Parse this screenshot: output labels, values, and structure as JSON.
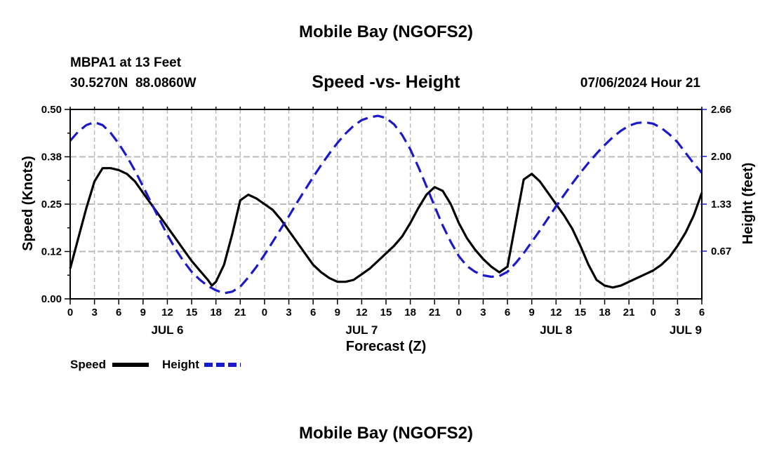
{
  "page": {
    "title": "Mobile Bay (NGOFS2)",
    "station_line": "MBPA1 at 13 Feet",
    "coords_line": "30.5270N  88.0860W",
    "datetime": "07/06/2024 Hour 21",
    "footer_title": "Mobile Bay (NGOFS2)"
  },
  "colors": {
    "speed": "#000000",
    "height": "#1a1acc",
    "grid": "#bbbbbb"
  },
  "chart_data": {
    "type": "line",
    "title": "Speed -vs- Height",
    "xlabel": "Forecast (Z)",
    "ylabel_left": "Speed (Knots)",
    "ylabel_right": "Height (feet)",
    "x_unit": "hours since JUL 6 00Z",
    "xlim": [
      0,
      78
    ],
    "ylim_left": [
      0,
      0.5
    ],
    "ylim_right": [
      0,
      2.66
    ],
    "left_ticks": [
      {
        "value": 0.0,
        "label": "0.00"
      },
      {
        "value": 0.125,
        "label": "0.12"
      },
      {
        "value": 0.25,
        "label": "0.25"
      },
      {
        "value": 0.375,
        "label": "0.38"
      },
      {
        "value": 0.5,
        "label": "0.50"
      }
    ],
    "right_ticks": [
      {
        "value": 0.67,
        "label": "0.67"
      },
      {
        "value": 1.33,
        "label": "1.33"
      },
      {
        "value": 2.0,
        "label": "2.00"
      },
      {
        "value": 2.66,
        "label": "2.66"
      }
    ],
    "x_ticks": [
      {
        "value": 0,
        "label": "0"
      },
      {
        "value": 3,
        "label": "3"
      },
      {
        "value": 6,
        "label": "6"
      },
      {
        "value": 9,
        "label": "9"
      },
      {
        "value": 12,
        "label": "12"
      },
      {
        "value": 15,
        "label": "15"
      },
      {
        "value": 18,
        "label": "18"
      },
      {
        "value": 21,
        "label": "21"
      },
      {
        "value": 24,
        "label": "0"
      },
      {
        "value": 27,
        "label": "3"
      },
      {
        "value": 30,
        "label": "6"
      },
      {
        "value": 33,
        "label": "9"
      },
      {
        "value": 36,
        "label": "12"
      },
      {
        "value": 39,
        "label": "15"
      },
      {
        "value": 42,
        "label": "18"
      },
      {
        "value": 45,
        "label": "21"
      },
      {
        "value": 48,
        "label": "0"
      },
      {
        "value": 51,
        "label": "3"
      },
      {
        "value": 54,
        "label": "6"
      },
      {
        "value": 57,
        "label": "9"
      },
      {
        "value": 60,
        "label": "12"
      },
      {
        "value": 63,
        "label": "15"
      },
      {
        "value": 66,
        "label": "18"
      },
      {
        "value": 69,
        "label": "21"
      },
      {
        "value": 72,
        "label": "0"
      },
      {
        "value": 75,
        "label": "3"
      },
      {
        "value": 78,
        "label": "6"
      }
    ],
    "day_labels": [
      {
        "value": 12,
        "label": "JUL 6"
      },
      {
        "value": 36,
        "label": "JUL 7"
      },
      {
        "value": 60,
        "label": "JUL 8"
      },
      {
        "value": 76,
        "label": "JUL 9"
      }
    ],
    "series": [
      {
        "name": "Speed",
        "axis": "left",
        "style": "solid",
        "points": [
          [
            0,
            0.08
          ],
          [
            1,
            0.16
          ],
          [
            2,
            0.24
          ],
          [
            3,
            0.31
          ],
          [
            4,
            0.345
          ],
          [
            5,
            0.345
          ],
          [
            6,
            0.34
          ],
          [
            7,
            0.33
          ],
          [
            8,
            0.31
          ],
          [
            9,
            0.28
          ],
          [
            10,
            0.25
          ],
          [
            11,
            0.22
          ],
          [
            12,
            0.19
          ],
          [
            13,
            0.16
          ],
          [
            14,
            0.13
          ],
          [
            15,
            0.1
          ],
          [
            16,
            0.075
          ],
          [
            17,
            0.05
          ],
          [
            17.5,
            0.035
          ],
          [
            18,
            0.045
          ],
          [
            19,
            0.09
          ],
          [
            20,
            0.17
          ],
          [
            21,
            0.26
          ],
          [
            22,
            0.275
          ],
          [
            23,
            0.265
          ],
          [
            24,
            0.25
          ],
          [
            25,
            0.235
          ],
          [
            26,
            0.21
          ],
          [
            27,
            0.18
          ],
          [
            28,
            0.15
          ],
          [
            29,
            0.12
          ],
          [
            30,
            0.09
          ],
          [
            31,
            0.07
          ],
          [
            32,
            0.055
          ],
          [
            33,
            0.045
          ],
          [
            34,
            0.045
          ],
          [
            35,
            0.05
          ],
          [
            36,
            0.065
          ],
          [
            37,
            0.08
          ],
          [
            38,
            0.1
          ],
          [
            39,
            0.12
          ],
          [
            40,
            0.14
          ],
          [
            41,
            0.165
          ],
          [
            42,
            0.2
          ],
          [
            43,
            0.24
          ],
          [
            44,
            0.275
          ],
          [
            45,
            0.295
          ],
          [
            46,
            0.285
          ],
          [
            47,
            0.25
          ],
          [
            48,
            0.2
          ],
          [
            49,
            0.16
          ],
          [
            50,
            0.13
          ],
          [
            51,
            0.105
          ],
          [
            52,
            0.085
          ],
          [
            53,
            0.07
          ],
          [
            54,
            0.085
          ],
          [
            55,
            0.2
          ],
          [
            56,
            0.315
          ],
          [
            57,
            0.33
          ],
          [
            58,
            0.31
          ],
          [
            59,
            0.28
          ],
          [
            60,
            0.25
          ],
          [
            61,
            0.22
          ],
          [
            62,
            0.185
          ],
          [
            63,
            0.14
          ],
          [
            64,
            0.09
          ],
          [
            65,
            0.05
          ],
          [
            66,
            0.035
          ],
          [
            67,
            0.03
          ],
          [
            68,
            0.035
          ],
          [
            69,
            0.045
          ],
          [
            70,
            0.055
          ],
          [
            71,
            0.065
          ],
          [
            72,
            0.075
          ],
          [
            73,
            0.09
          ],
          [
            74,
            0.11
          ],
          [
            75,
            0.14
          ],
          [
            76,
            0.175
          ],
          [
            77,
            0.22
          ],
          [
            78,
            0.28
          ]
        ]
      },
      {
        "name": "Height",
        "axis": "right",
        "style": "dashed",
        "points": [
          [
            0,
            2.22
          ],
          [
            1,
            2.35
          ],
          [
            2,
            2.44
          ],
          [
            3,
            2.48
          ],
          [
            4,
            2.44
          ],
          [
            5,
            2.33
          ],
          [
            6,
            2.18
          ],
          [
            7,
            2.0
          ],
          [
            8,
            1.8
          ],
          [
            9,
            1.58
          ],
          [
            10,
            1.35
          ],
          [
            11,
            1.12
          ],
          [
            12,
            0.9
          ],
          [
            13,
            0.7
          ],
          [
            14,
            0.53
          ],
          [
            15,
            0.38
          ],
          [
            16,
            0.27
          ],
          [
            17,
            0.18
          ],
          [
            18,
            0.12
          ],
          [
            19,
            0.08
          ],
          [
            20,
            0.1
          ],
          [
            21,
            0.17
          ],
          [
            22,
            0.3
          ],
          [
            23,
            0.45
          ],
          [
            24,
            0.62
          ],
          [
            25,
            0.8
          ],
          [
            26,
            0.98
          ],
          [
            27,
            1.16
          ],
          [
            28,
            1.35
          ],
          [
            29,
            1.53
          ],
          [
            30,
            1.71
          ],
          [
            31,
            1.88
          ],
          [
            32,
            2.04
          ],
          [
            33,
            2.19
          ],
          [
            34,
            2.32
          ],
          [
            35,
            2.43
          ],
          [
            36,
            2.51
          ],
          [
            37,
            2.55
          ],
          [
            38,
            2.57
          ],
          [
            39,
            2.54
          ],
          [
            40,
            2.45
          ],
          [
            41,
            2.3
          ],
          [
            42,
            2.1
          ],
          [
            43,
            1.85
          ],
          [
            44,
            1.58
          ],
          [
            45,
            1.3
          ],
          [
            46,
            1.03
          ],
          [
            47,
            0.8
          ],
          [
            48,
            0.6
          ],
          [
            49,
            0.46
          ],
          [
            50,
            0.38
          ],
          [
            51,
            0.33
          ],
          [
            52,
            0.31
          ],
          [
            53,
            0.32
          ],
          [
            54,
            0.38
          ],
          [
            55,
            0.5
          ],
          [
            56,
            0.64
          ],
          [
            57,
            0.8
          ],
          [
            58,
            0.96
          ],
          [
            59,
            1.13
          ],
          [
            60,
            1.3
          ],
          [
            61,
            1.46
          ],
          [
            62,
            1.62
          ],
          [
            63,
            1.77
          ],
          [
            64,
            1.91
          ],
          [
            65,
            2.04
          ],
          [
            66,
            2.16
          ],
          [
            67,
            2.27
          ],
          [
            68,
            2.36
          ],
          [
            69,
            2.43
          ],
          [
            70,
            2.47
          ],
          [
            71,
            2.48
          ],
          [
            72,
            2.46
          ],
          [
            73,
            2.4
          ],
          [
            74,
            2.31
          ],
          [
            75,
            2.2
          ],
          [
            76,
            2.05
          ],
          [
            77,
            1.9
          ],
          [
            78,
            1.77
          ]
        ]
      }
    ],
    "legend": [
      {
        "name": "Speed",
        "label": "Speed",
        "color": "#000000",
        "style": "solid"
      },
      {
        "name": "Height",
        "label": "Height",
        "color": "#1a1acc",
        "style": "dashed"
      }
    ],
    "legend_position": "bottom-left"
  }
}
